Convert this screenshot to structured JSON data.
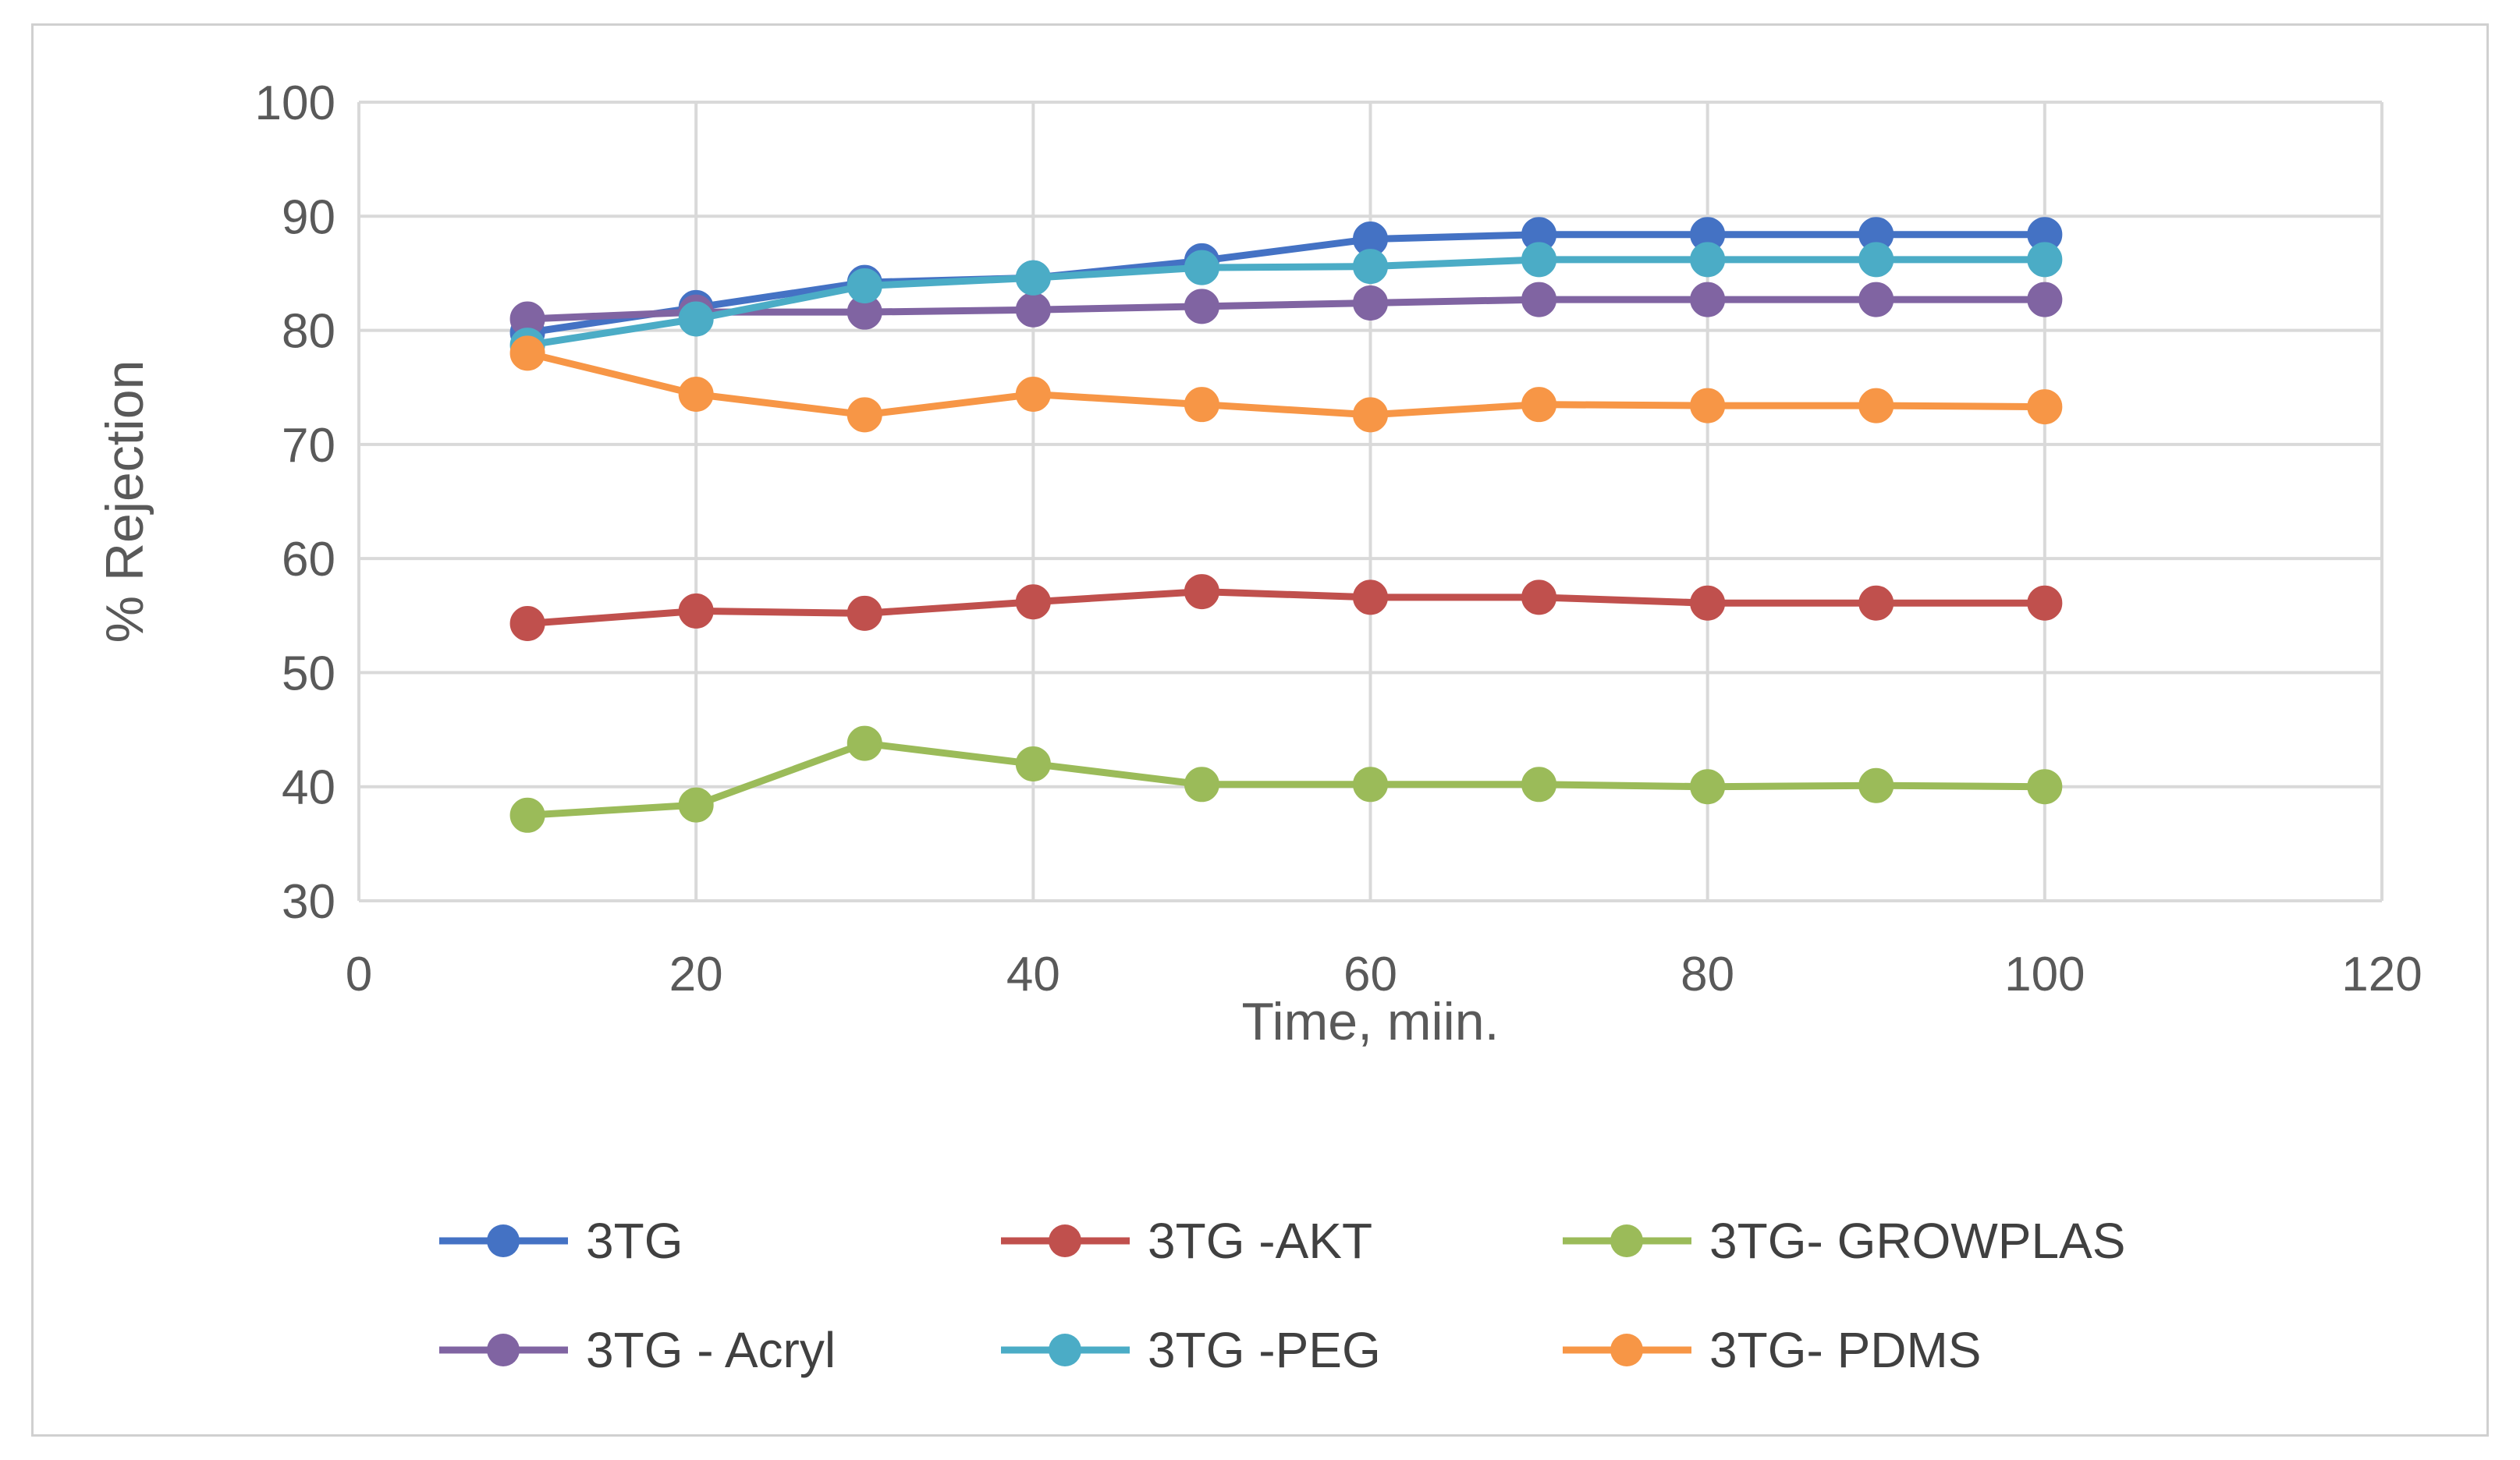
{
  "chart_data": {
    "type": "line",
    "title": "",
    "xlabel": "Time, miin.",
    "ylabel": "% Rejection",
    "xlim": [
      0,
      120
    ],
    "ylim": [
      30,
      100
    ],
    "xticks": [
      "0",
      "20",
      "40",
      "60",
      "80",
      "100",
      "120"
    ],
    "yticks": [
      "30",
      "40",
      "50",
      "60",
      "70",
      "80",
      "90",
      "100"
    ],
    "grid": true,
    "legend_position": "bottom",
    "x": [
      10,
      20,
      30,
      40,
      50,
      60,
      70,
      80,
      90,
      100
    ],
    "series": [
      {
        "name": "3TG",
        "color": "#4472C4",
        "values": [
          79.8,
          82.0,
          84.2,
          84.6,
          86.1,
          88.0,
          88.4,
          88.4,
          88.4,
          88.4
        ]
      },
      {
        "name": "3TG -AKT",
        "color": "#C0504D",
        "values": [
          54.3,
          55.4,
          55.2,
          56.2,
          57.1,
          56.6,
          56.6,
          56.1,
          56.1,
          56.1
        ]
      },
      {
        "name": "3TG- GROWPLAS",
        "color": "#9BBB59",
        "values": [
          37.5,
          38.4,
          43.8,
          42.0,
          40.2,
          40.2,
          40.2,
          40.0,
          40.1,
          40.0
        ]
      },
      {
        "name": "3TG - Acryl",
        "color": "#8064A2",
        "values": [
          81.0,
          81.6,
          81.6,
          81.8,
          82.1,
          82.4,
          82.7,
          82.7,
          82.7,
          82.7
        ]
      },
      {
        "name": "3TG -PEG",
        "color": "#4BACC6",
        "values": [
          78.7,
          81.0,
          83.9,
          84.6,
          85.5,
          85.6,
          86.2,
          86.2,
          86.2,
          86.2
        ]
      },
      {
        "name": "3TG- PDMS",
        "color": "#F79646",
        "values": [
          78.0,
          74.4,
          72.6,
          74.4,
          73.5,
          72.6,
          73.5,
          73.4,
          73.4,
          73.3
        ]
      }
    ]
  }
}
